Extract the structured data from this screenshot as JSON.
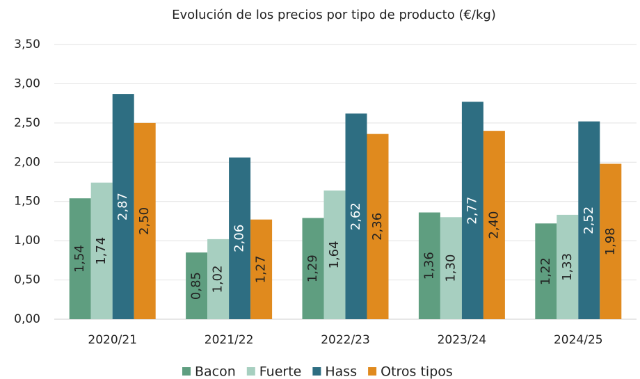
{
  "chart_data": {
    "type": "bar",
    "title": "Evolución de los precios por tipo de producto (€/kg)",
    "categories": [
      "2020/21",
      "2021/22",
      "2022/23",
      "2023/24",
      "2024/25"
    ],
    "series": [
      {
        "name": "Bacon",
        "color": "#5f9e80",
        "values": [
          1.54,
          0.85,
          1.29,
          1.36,
          1.22
        ],
        "value_labels": [
          "1,54",
          "0,85",
          "1,29",
          "1,36",
          "1,22"
        ]
      },
      {
        "name": "Fuerte",
        "color": "#a7cfc0",
        "values": [
          1.74,
          1.02,
          1.64,
          1.3,
          1.33
        ],
        "value_labels": [
          "1,74",
          "1,02",
          "1,64",
          "1,30",
          "1,33"
        ]
      },
      {
        "name": "Hass",
        "color": "#2e6e82",
        "values": [
          2.87,
          2.06,
          2.62,
          2.77,
          2.52
        ],
        "value_labels": [
          "2,87",
          "2,06",
          "2,62",
          "2,77",
          "2,52"
        ]
      },
      {
        "name": "Otros tipos",
        "color": "#e08a1e",
        "values": [
          2.5,
          1.27,
          2.36,
          2.4,
          1.98
        ],
        "value_labels": [
          "2,50",
          "1,27",
          "2,36",
          "2,40",
          "1,98"
        ]
      }
    ],
    "ylim": [
      0,
      3.5
    ],
    "yticks": [
      {
        "value": 0,
        "label": "0,00"
      },
      {
        "value": 0.5,
        "label": "0,50"
      },
      {
        "value": 1,
        "label": "1,00"
      },
      {
        "value": 1.5,
        "label": "1,50"
      },
      {
        "value": 2,
        "label": "2,00"
      },
      {
        "value": 2.5,
        "label": "2,50"
      },
      {
        "value": 3,
        "label": "3,00"
      },
      {
        "value": 3.5,
        "label": "3,50"
      }
    ],
    "grid": true
  }
}
